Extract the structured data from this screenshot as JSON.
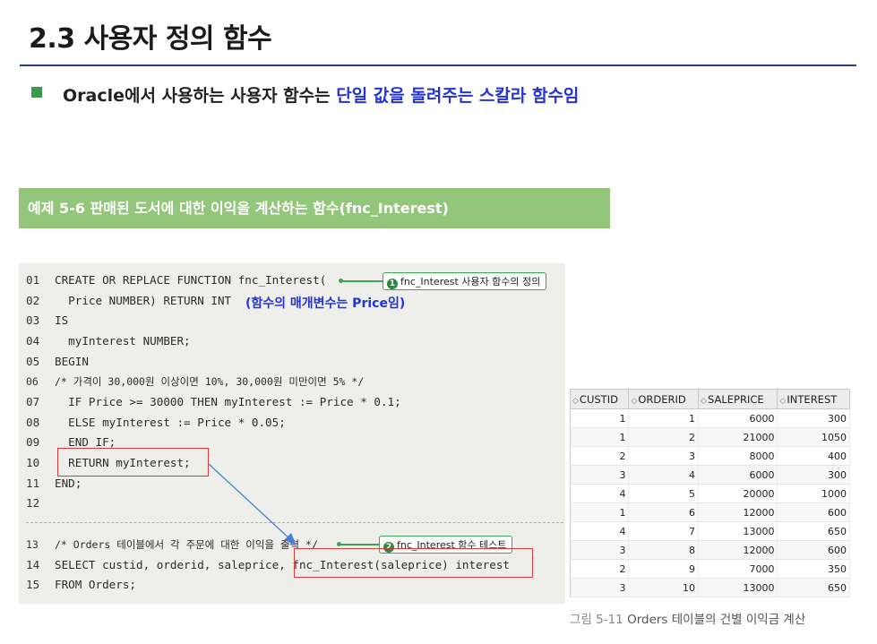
{
  "slide": {
    "title": "2.3 사용자 정의 함수",
    "bullet_prefix": "Oracle에서 사용하는 사용자 함수는 ",
    "bullet_highlight": "단일 값을 돌려주는 스칼라 함수임"
  },
  "example": {
    "banner": "예제 5-6 판매된 도서에 대한 이익을 계산하는 함수(fnc_Interest)"
  },
  "code": {
    "lines": [
      {
        "num": "01",
        "text": "CREATE OR REPLACE FUNCTION fnc_Interest("
      },
      {
        "num": "02",
        "text": "  Price NUMBER) RETURN INT"
      },
      {
        "num": "03",
        "text": "IS"
      },
      {
        "num": "04",
        "text": "  myInterest NUMBER;"
      },
      {
        "num": "05",
        "text": "BEGIN"
      },
      {
        "num": "06",
        "text": "/* 가격이 30,000원 이상이면 10%, 30,000원 미만이면 5% */"
      },
      {
        "num": "07",
        "text": "  IF Price >= 30000 THEN myInterest := Price * 0.1;"
      },
      {
        "num": "08",
        "text": "  ELSE myInterest := Price * 0.05;"
      },
      {
        "num": "09",
        "text": "  END IF;"
      },
      {
        "num": "10",
        "text": "  RETURN myInterest;"
      },
      {
        "num": "11",
        "text": "END;"
      },
      {
        "num": "12",
        "text": ""
      },
      {
        "num": "13",
        "text": "/* Orders 테이블에서 각 주문에 대한 이익을 출력 */"
      },
      {
        "num": "14",
        "text": "SELECT custid, orderid, saleprice, fnc_Interest(saleprice) interest"
      },
      {
        "num": "15",
        "text": "FROM Orders;"
      }
    ],
    "param_note": "(함수의 매개변수는 Price임)",
    "callout_1": {
      "number": "1",
      "text": "fnc_Interest 사용자 함수의 정의"
    },
    "callout_2": {
      "number": "2",
      "text": "fnc_Interest 함수 테스트"
    }
  },
  "result_table": {
    "sort_icon": "◇",
    "columns": [
      "CUSTID",
      "ORDERID",
      "SALEPRICE",
      "INTEREST"
    ],
    "rows": [
      [
        "1",
        "1",
        "6000",
        "300"
      ],
      [
        "1",
        "2",
        "21000",
        "1050"
      ],
      [
        "2",
        "3",
        "8000",
        "400"
      ],
      [
        "3",
        "4",
        "6000",
        "300"
      ],
      [
        "4",
        "5",
        "20000",
        "1000"
      ],
      [
        "1",
        "6",
        "12000",
        "600"
      ],
      [
        "4",
        "7",
        "13000",
        "650"
      ],
      [
        "3",
        "8",
        "12000",
        "600"
      ],
      [
        "2",
        "9",
        "7000",
        "350"
      ],
      [
        "3",
        "10",
        "13000",
        "650"
      ]
    ]
  },
  "figure_caption": {
    "label": "그림 5-11",
    "text": " Orders 테이블의 건별 이익금 계산"
  },
  "colors": {
    "title_rule": "#2e3b80",
    "bullet": "#3a9a4a",
    "highlight": "#2533d6",
    "banner": "#93c57a",
    "code_bg": "#eeeeea",
    "callout": "#3aa655",
    "red_box": "#d93a3a",
    "arrow": "#4a7fd4"
  }
}
